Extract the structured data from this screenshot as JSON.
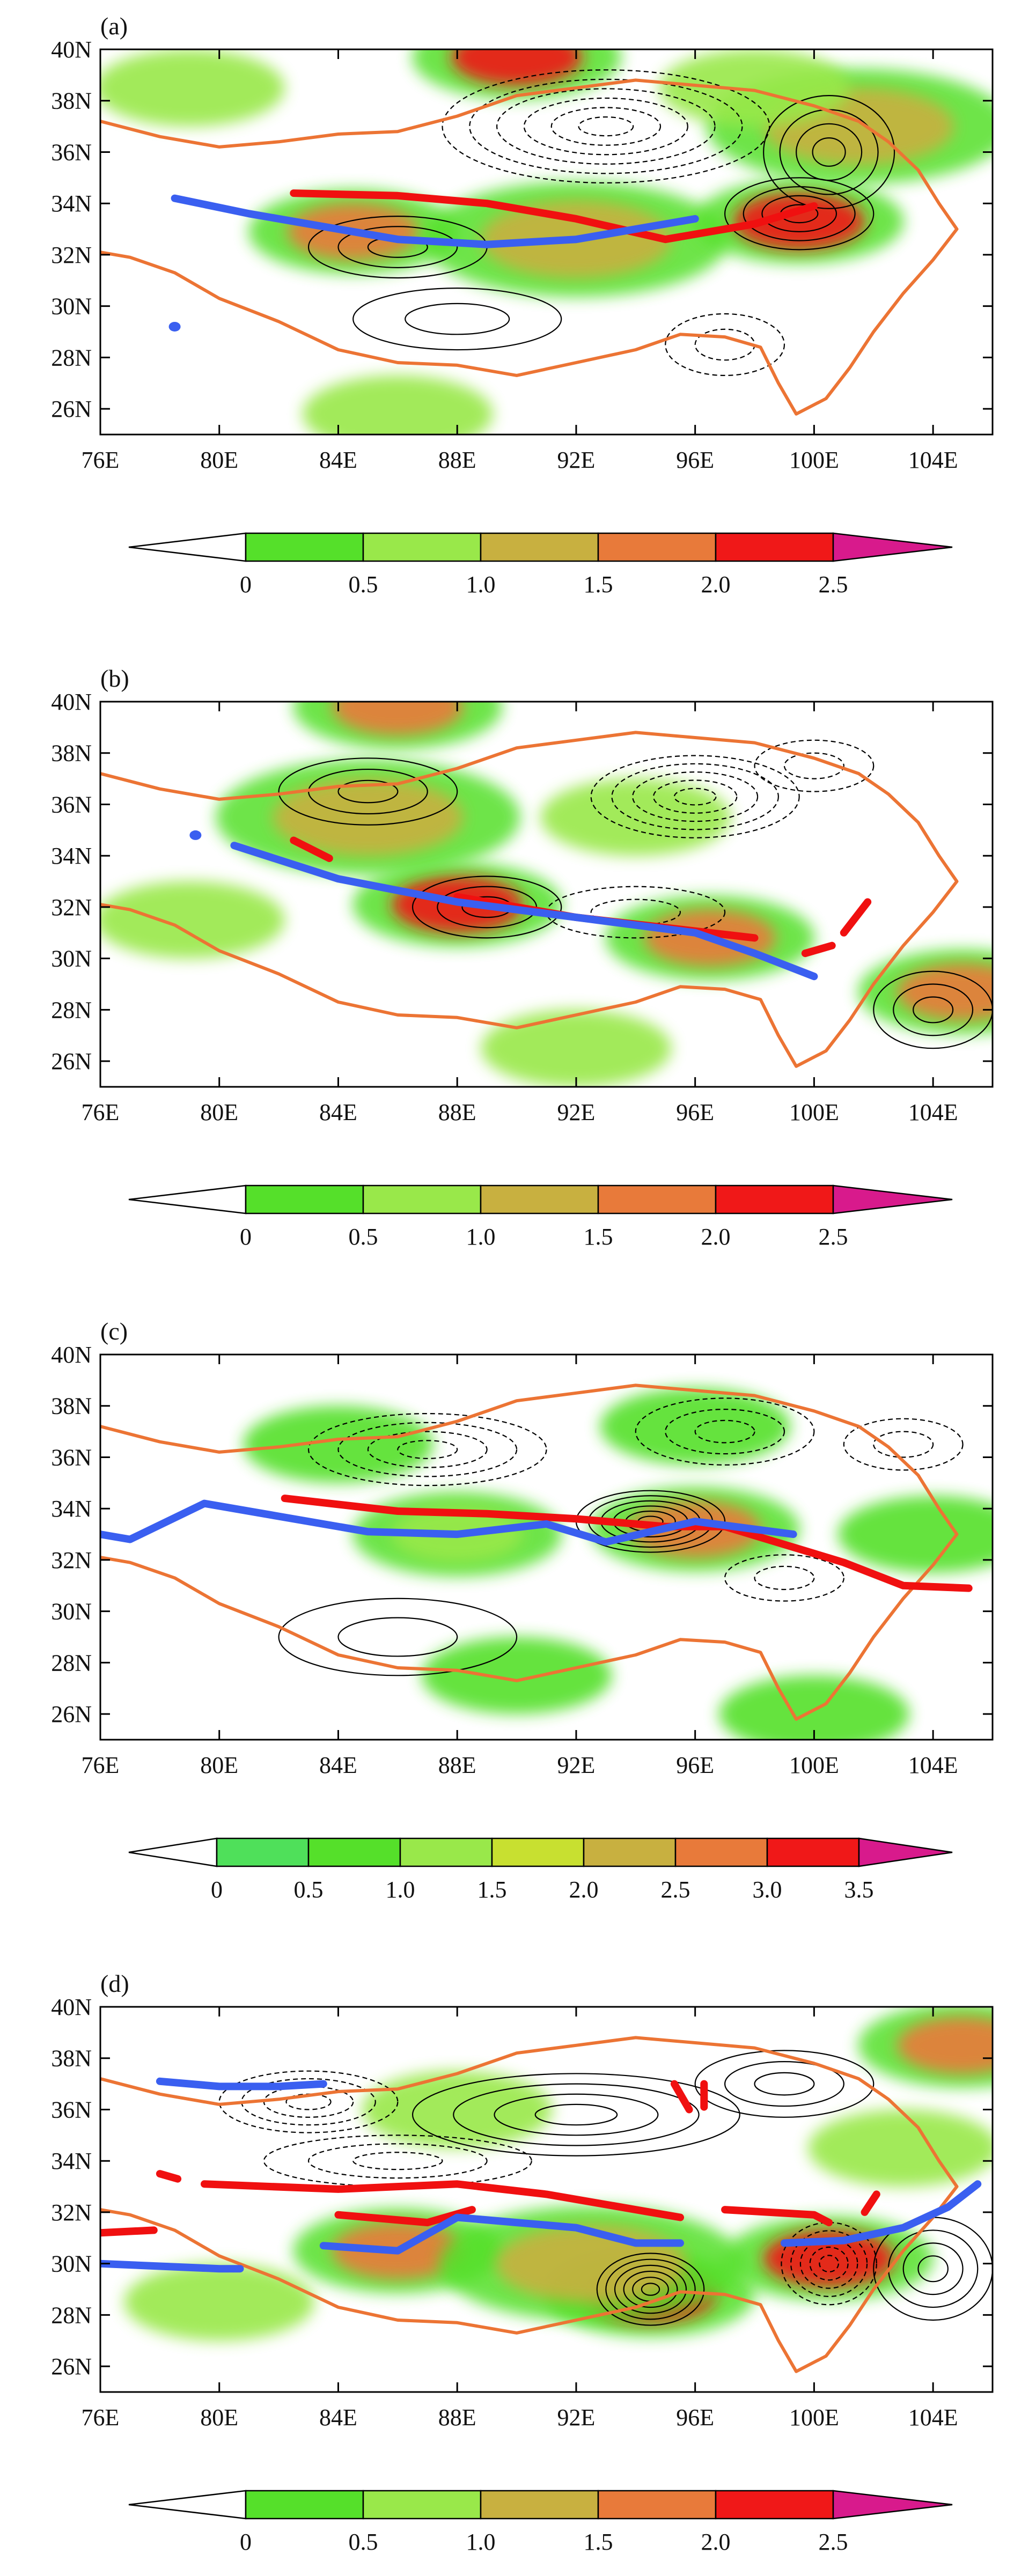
{
  "colors": {
    "shade_green": "#55e02a",
    "shade_lightgreen": "#99e84a",
    "shade_olive": "#c8b040",
    "shade_orange": "#e87a3a",
    "shade_red": "#f01818",
    "colorbar_end": "#d81a8c",
    "boundary": "#ec7434",
    "axis_blue": "#3a5ff0",
    "shear_red": "#f01010",
    "contour": "#000000"
  },
  "chart_data": [
    {
      "type": "heatmap",
      "panel_label": "(a)",
      "xlim": [
        76,
        106
      ],
      "ylim": [
        25,
        40
      ],
      "xticks": [
        76,
        80,
        84,
        88,
        92,
        96,
        100,
        104
      ],
      "xtick_labels": [
        "76E",
        "80E",
        "84E",
        "88E",
        "92E",
        "96E",
        "100E",
        "104E"
      ],
      "yticks": [
        26,
        28,
        30,
        32,
        34,
        36,
        38,
        40
      ],
      "ytick_labels": [
        "26N",
        "28N",
        "30N",
        "32N",
        "34N",
        "36N",
        "38N",
        "40N"
      ],
      "colorbar_levels": [
        "0",
        "0.5",
        "1.0",
        "1.5",
        "2.0",
        "2.5"
      ],
      "blue_line": [
        [
          78.5,
          34.2
        ],
        [
          81,
          33.6
        ],
        [
          84,
          33.0
        ],
        [
          86,
          32.6
        ],
        [
          89,
          32.4
        ],
        [
          92,
          32.6
        ],
        [
          95,
          33.2
        ],
        [
          96,
          33.4
        ]
      ],
      "blue_dot": [
        78.5,
        29.2
      ],
      "red_line": [
        [
          82.5,
          34.4
        ],
        [
          86,
          34.3
        ],
        [
          89,
          34.0
        ],
        [
          92,
          33.4
        ],
        [
          95,
          32.6
        ],
        [
          98,
          33.2
        ],
        [
          100,
          33.9
        ]
      ],
      "shading": [
        {
          "lon": 90,
          "lat": 39.7,
          "level": 2.0
        },
        {
          "lon": 84.5,
          "lat": 32.9,
          "level": 1.5
        },
        {
          "lon": 92,
          "lat": 32.6,
          "level": 1.0
        },
        {
          "lon": 99.5,
          "lat": 33.3,
          "level": 2.0
        },
        {
          "lon": 101.5,
          "lat": 37.0,
          "level": 1.0
        },
        {
          "lon": 79,
          "lat": 38.5,
          "level": 0.5
        },
        {
          "lon": 98,
          "lat": 38.5,
          "level": 0.5
        },
        {
          "lon": 86,
          "lat": 25.8,
          "level": 0.5
        }
      ],
      "contour_centers": [
        {
          "lon": 93,
          "lat": 37.0,
          "rx": 5.5,
          "ry": 2.2,
          "n": 6,
          "dashed": true
        },
        {
          "lon": 100.5,
          "lat": 36.0,
          "rx": 2.2,
          "ry": 2.2,
          "n": 4,
          "dashed": false
        },
        {
          "lon": 99.5,
          "lat": 33.6,
          "rx": 2.5,
          "ry": 1.4,
          "n": 4,
          "dashed": false
        },
        {
          "lon": 86,
          "lat": 32.3,
          "rx": 3.0,
          "ry": 1.2,
          "n": 3,
          "dashed": false
        },
        {
          "lon": 97,
          "lat": 28.5,
          "rx": 2.0,
          "ry": 1.2,
          "n": 2,
          "dashed": true
        },
        {
          "lon": 88,
          "lat": 29.5,
          "rx": 3.5,
          "ry": 1.2,
          "n": 2,
          "dashed": false
        }
      ]
    },
    {
      "type": "heatmap",
      "panel_label": "(b)",
      "xlim": [
        76,
        106
      ],
      "ylim": [
        25,
        40
      ],
      "xticks": [
        76,
        80,
        84,
        88,
        92,
        96,
        100,
        104
      ],
      "xtick_labels": [
        "76E",
        "80E",
        "84E",
        "88E",
        "92E",
        "96E",
        "100E",
        "104E"
      ],
      "yticks": [
        26,
        28,
        30,
        32,
        34,
        36,
        38,
        40
      ],
      "ytick_labels": [
        "26N",
        "28N",
        "30N",
        "32N",
        "34N",
        "36N",
        "38N",
        "40N"
      ],
      "colorbar_levels": [
        "0",
        "0.5",
        "1.0",
        "1.5",
        "2.0",
        "2.5"
      ],
      "blue_line": [
        [
          80.5,
          34.4
        ],
        [
          84,
          33.1
        ],
        [
          88,
          32.2
        ],
        [
          92,
          31.6
        ],
        [
          96,
          31.0
        ],
        [
          98,
          30.2
        ],
        [
          100,
          29.3
        ]
      ],
      "blue_dot": [
        79.2,
        34.8
      ],
      "red_line": [
        [
          88,
          32.4
        ],
        [
          92,
          31.6
        ],
        [
          95,
          31.2
        ],
        [
          98,
          30.8
        ]
      ],
      "red_segments": [
        [
          [
            82.5,
            34.6
          ],
          [
            83.7,
            33.9
          ]
        ],
        [
          [
            99.7,
            30.2
          ],
          [
            100.6,
            30.5
          ]
        ],
        [
          [
            101,
            31
          ],
          [
            101.8,
            32.2
          ]
        ]
      ],
      "shading": [
        {
          "lon": 86,
          "lat": 39.8,
          "level": 1.5
        },
        {
          "lon": 88,
          "lat": 32.1,
          "level": 2.0
        },
        {
          "lon": 96.5,
          "lat": 30.8,
          "level": 1.5
        },
        {
          "lon": 105,
          "lat": 28.7,
          "level": 1.5
        },
        {
          "lon": 85,
          "lat": 35.5,
          "level": 1.0
        },
        {
          "lon": 94,
          "lat": 35.5,
          "level": 0.5
        },
        {
          "lon": 79,
          "lat": 31.5,
          "level": 0.5
        },
        {
          "lon": 92,
          "lat": 26.5,
          "level": 0.5
        }
      ],
      "contour_centers": [
        {
          "lon": 96,
          "lat": 36.3,
          "rx": 3.5,
          "ry": 1.6,
          "n": 5,
          "dashed": true
        },
        {
          "lon": 85,
          "lat": 36.5,
          "rx": 3.0,
          "ry": 1.3,
          "n": 3,
          "dashed": false
        },
        {
          "lon": 89,
          "lat": 32.0,
          "rx": 2.5,
          "ry": 1.2,
          "n": 3,
          "dashed": false
        },
        {
          "lon": 94,
          "lat": 31.8,
          "rx": 3.0,
          "ry": 1.0,
          "n": 2,
          "dashed": true
        },
        {
          "lon": 100,
          "lat": 37.5,
          "rx": 2.0,
          "ry": 1.0,
          "n": 2,
          "dashed": true
        },
        {
          "lon": 104,
          "lat": 28.0,
          "rx": 2.0,
          "ry": 1.5,
          "n": 3,
          "dashed": false
        }
      ]
    },
    {
      "type": "heatmap",
      "panel_label": "(c)",
      "xlim": [
        76,
        106
      ],
      "ylim": [
        25,
        40
      ],
      "xticks": [
        76,
        80,
        84,
        88,
        92,
        96,
        100,
        104
      ],
      "xtick_labels": [
        "76E",
        "80E",
        "84E",
        "88E",
        "92E",
        "96E",
        "100E",
        "104E"
      ],
      "yticks": [
        26,
        28,
        30,
        32,
        34,
        36,
        38,
        40
      ],
      "ytick_labels": [
        "26N",
        "28N",
        "30N",
        "32N",
        "34N",
        "36N",
        "38N",
        "40N"
      ],
      "colorbar_levels": [
        "0",
        "0.5",
        "1.0",
        "1.5",
        "2.0",
        "2.5",
        "3.0",
        "3.5"
      ],
      "blue_line": [
        [
          76,
          33.0
        ],
        [
          77,
          32.8
        ],
        [
          79.5,
          34.2
        ],
        [
          82,
          33.7
        ],
        [
          85,
          33.1
        ],
        [
          88,
          33.0
        ],
        [
          91,
          33.4
        ],
        [
          93,
          32.7
        ],
        [
          96,
          33.5
        ],
        [
          99.3,
          33.0
        ]
      ],
      "red_line": [
        [
          82.2,
          34.4
        ],
        [
          86,
          33.9
        ],
        [
          89,
          33.8
        ],
        [
          92,
          33.6
        ],
        [
          95,
          33.3
        ],
        [
          97,
          33.3
        ],
        [
          99,
          32.6
        ],
        [
          101,
          31.9
        ],
        [
          103,
          31.0
        ],
        [
          105.2,
          30.9
        ]
      ],
      "shading": [
        {
          "lon": 96,
          "lat": 33.2,
          "level": 2.5
        },
        {
          "lon": 88,
          "lat": 33.0,
          "level": 1.5
        },
        {
          "lon": 84,
          "lat": 36.5,
          "level": 0.5
        },
        {
          "lon": 96,
          "lat": 37.2,
          "level": 0.5
        },
        {
          "lon": 104,
          "lat": 33.0,
          "level": 0.5
        },
        {
          "lon": 90,
          "lat": 27.5,
          "level": 0.5
        },
        {
          "lon": 100,
          "lat": 26.0,
          "level": 0.5
        }
      ],
      "contour_centers": [
        {
          "lon": 94.5,
          "lat": 33.5,
          "rx": 2.5,
          "ry": 1.2,
          "n": 6,
          "dashed": false
        },
        {
          "lon": 87,
          "lat": 36.3,
          "rx": 4.0,
          "ry": 1.4,
          "n": 4,
          "dashed": true
        },
        {
          "lon": 97,
          "lat": 37.0,
          "rx": 3.0,
          "ry": 1.3,
          "n": 3,
          "dashed": true
        },
        {
          "lon": 99,
          "lat": 31.3,
          "rx": 2.0,
          "ry": 0.9,
          "n": 2,
          "dashed": true
        },
        {
          "lon": 86,
          "lat": 29.0,
          "rx": 4.0,
          "ry": 1.5,
          "n": 2,
          "dashed": false
        },
        {
          "lon": 103,
          "lat": 36.5,
          "rx": 2.0,
          "ry": 1.0,
          "n": 2,
          "dashed": true
        }
      ]
    },
    {
      "type": "heatmap",
      "panel_label": "(d)",
      "xlim": [
        76,
        106
      ],
      "ylim": [
        25,
        40
      ],
      "xticks": [
        76,
        80,
        84,
        88,
        92,
        96,
        100,
        104
      ],
      "xtick_labels": [
        "76E",
        "80E",
        "84E",
        "88E",
        "92E",
        "96E",
        "100E",
        "104E"
      ],
      "yticks": [
        26,
        28,
        30,
        32,
        34,
        36,
        38,
        40
      ],
      "ytick_labels": [
        "26N",
        "28N",
        "30N",
        "32N",
        "34N",
        "36N",
        "38N",
        "40N"
      ],
      "colorbar_levels": [
        "0",
        "0.5",
        "1.0",
        "1.5",
        "2.0",
        "2.5"
      ],
      "blue_lines": [
        [
          [
            76,
            30.0
          ],
          [
            78,
            29.9
          ],
          [
            80,
            29.8
          ],
          [
            80.7,
            29.8
          ]
        ],
        [
          [
            78,
            37.1
          ],
          [
            80,
            36.9
          ],
          [
            82,
            36.9
          ],
          [
            83.5,
            37.0
          ]
        ],
        [
          [
            83.5,
            30.7
          ],
          [
            86,
            30.5
          ],
          [
            88,
            31.8
          ],
          [
            90,
            31.6
          ],
          [
            92,
            31.4
          ],
          [
            94,
            30.8
          ],
          [
            95.5,
            30.8
          ]
        ],
        [
          [
            99,
            30.8
          ],
          [
            101,
            30.9
          ],
          [
            103,
            31.4
          ],
          [
            104.5,
            32.2
          ],
          [
            105.5,
            33.1
          ]
        ]
      ],
      "red_lines": [
        [
          [
            76,
            31.2
          ],
          [
            77.8,
            31.3
          ]
        ],
        [
          [
            78,
            33.5
          ],
          [
            78.6,
            33.3
          ]
        ],
        [
          [
            79.5,
            33.1
          ],
          [
            84,
            32.9
          ],
          [
            88,
            33.1
          ],
          [
            91,
            32.7
          ],
          [
            94,
            32.1
          ],
          [
            95.5,
            31.8
          ]
        ],
        [
          [
            84,
            31.9
          ],
          [
            87,
            31.6
          ],
          [
            88.5,
            32.1
          ]
        ],
        [
          [
            97,
            32.1
          ],
          [
            100,
            31.9
          ],
          [
            100.5,
            31.6
          ]
        ],
        [
          [
            101.7,
            32.0
          ],
          [
            102.1,
            32.7
          ]
        ],
        [
          [
            95.3,
            37.0
          ],
          [
            95.8,
            36.0
          ]
        ],
        [
          [
            96.3,
            37.0
          ],
          [
            96.3,
            36.1
          ]
        ]
      ],
      "shading": [
        {
          "lon": 94.5,
          "lat": 28.8,
          "level": 2.0
        },
        {
          "lon": 100.5,
          "lat": 30.2,
          "level": 2.0
        },
        {
          "lon": 86,
          "lat": 30.5,
          "level": 1.5
        },
        {
          "lon": 105,
          "lat": 38.5,
          "level": 1.5
        },
        {
          "lon": 92.5,
          "lat": 30.0,
          "level": 1.0
        },
        {
          "lon": 88,
          "lat": 36.0,
          "level": 0.5
        },
        {
          "lon": 80,
          "lat": 28.5,
          "level": 0.5
        },
        {
          "lon": 103,
          "lat": 34.5,
          "level": 0.5
        }
      ],
      "contour_centers": [
        {
          "lon": 94.5,
          "lat": 29.0,
          "rx": 1.8,
          "ry": 1.4,
          "n": 6,
          "dashed": false
        },
        {
          "lon": 100.5,
          "lat": 30.0,
          "rx": 1.6,
          "ry": 1.6,
          "n": 5,
          "dashed": true
        },
        {
          "lon": 83,
          "lat": 36.3,
          "rx": 3.0,
          "ry": 1.2,
          "n": 4,
          "dashed": true
        },
        {
          "lon": 92,
          "lat": 35.8,
          "rx": 5.5,
          "ry": 1.6,
          "n": 4,
          "dashed": false
        },
        {
          "lon": 104,
          "lat": 29.8,
          "rx": 2.0,
          "ry": 2.0,
          "n": 4,
          "dashed": false
        },
        {
          "lon": 86,
          "lat": 34.0,
          "rx": 4.5,
          "ry": 1.0,
          "n": 3,
          "dashed": true
        },
        {
          "lon": 99,
          "lat": 37.0,
          "rx": 3.0,
          "ry": 1.3,
          "n": 3,
          "dashed": false
        }
      ]
    }
  ]
}
